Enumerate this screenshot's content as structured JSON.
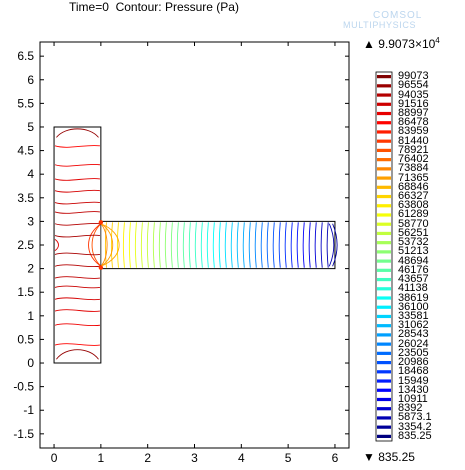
{
  "header": {
    "time_text": "Time=0",
    "contour_text": "Contour: Pressure (Pa)"
  },
  "watermark": {
    "line1": "COMSOL",
    "line2": "MULTIPHYSICS"
  },
  "colorbar": {
    "max_mark": "▲",
    "max_text": "9.9073×10",
    "max_exp": "4",
    "min_mark": "▼",
    "min_text": "835.25",
    "levels": [
      "99073",
      "96554",
      "94035",
      "91516",
      "88997",
      "86478",
      "83959",
      "81440",
      "78921",
      "76402",
      "73884",
      "71365",
      "68846",
      "66327",
      "63808",
      "61289",
      "58770",
      "56251",
      "53732",
      "51213",
      "48694",
      "46176",
      "43657",
      "41138",
      "38619",
      "36100",
      "33581",
      "31062",
      "28543",
      "26024",
      "23505",
      "20986",
      "18468",
      "15949",
      "13430",
      "10911",
      "8392",
      "5873.1",
      "3354.2",
      "835.25"
    ]
  },
  "chart_data": {
    "type": "contour",
    "title": "Time=0  Contour: Pressure (Pa)",
    "xlim": [
      -0.3,
      6.3
    ],
    "ylim": [
      -1.8,
      6.8
    ],
    "x_ticks": [
      "0",
      "1",
      "2",
      "3",
      "4",
      "5",
      "6"
    ],
    "y_ticks": [
      "-1.5",
      "-1",
      "-0.5",
      "0",
      "0.5",
      "1",
      "1.5",
      "2",
      "2.5",
      "3",
      "3.5",
      "4",
      "4.5",
      "5",
      "5.5",
      "6",
      "6.5"
    ],
    "unit": "Pa",
    "max": 99073,
    "min": 835.25,
    "geometry": {
      "vertical_channel": {
        "x": [
          0,
          1
        ],
        "y": [
          0,
          5
        ]
      },
      "horizontal_channel": {
        "x": [
          1,
          6
        ],
        "y": [
          2,
          3
        ]
      }
    }
  }
}
